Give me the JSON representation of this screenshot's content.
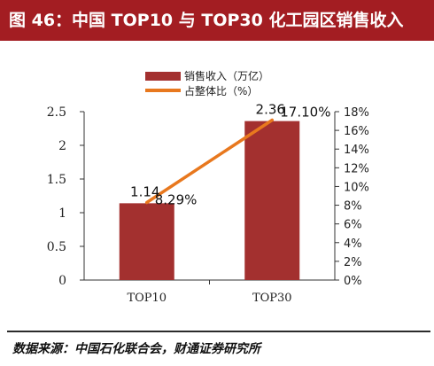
{
  "header": {
    "title": "图 46：中国 TOP10 与 TOP30 化工园区销售收入"
  },
  "footer": {
    "source": "数据来源：中国石化联合会，财通证券研究所"
  },
  "chart_data": {
    "type": "bar",
    "categories": [
      "TOP10",
      "TOP30"
    ],
    "series": [
      {
        "name": "销售收入（万亿）",
        "type": "bar",
        "axis": "left",
        "values": [
          1.14,
          2.36
        ],
        "labels": [
          "1.14",
          "2.36"
        ]
      },
      {
        "name": "占整体比（%）",
        "type": "line",
        "axis": "right",
        "values": [
          8.29,
          17.1
        ],
        "labels": [
          "8.29%",
          "17.10%"
        ]
      }
    ],
    "y_left": {
      "lim": [
        0,
        2.5
      ],
      "ticks": [
        0,
        0.5,
        1,
        1.5,
        2,
        2.5
      ],
      "tick_labels": [
        "0",
        "0.5",
        "1",
        "1.5",
        "2",
        "2.5"
      ]
    },
    "y_right": {
      "lim": [
        0,
        18
      ],
      "ticks": [
        0,
        2,
        4,
        6,
        8,
        10,
        12,
        14,
        16,
        18
      ],
      "tick_labels": [
        "0%",
        "2%",
        "4%",
        "6%",
        "8%",
        "10%",
        "12%",
        "14%",
        "16%",
        "18%"
      ]
    },
    "legend": "top-center",
    "grid": false,
    "colors": {
      "bar": "#a3302f",
      "line": "#e8781e",
      "axis": "#333333",
      "title_bg": "#a31d22"
    }
  }
}
